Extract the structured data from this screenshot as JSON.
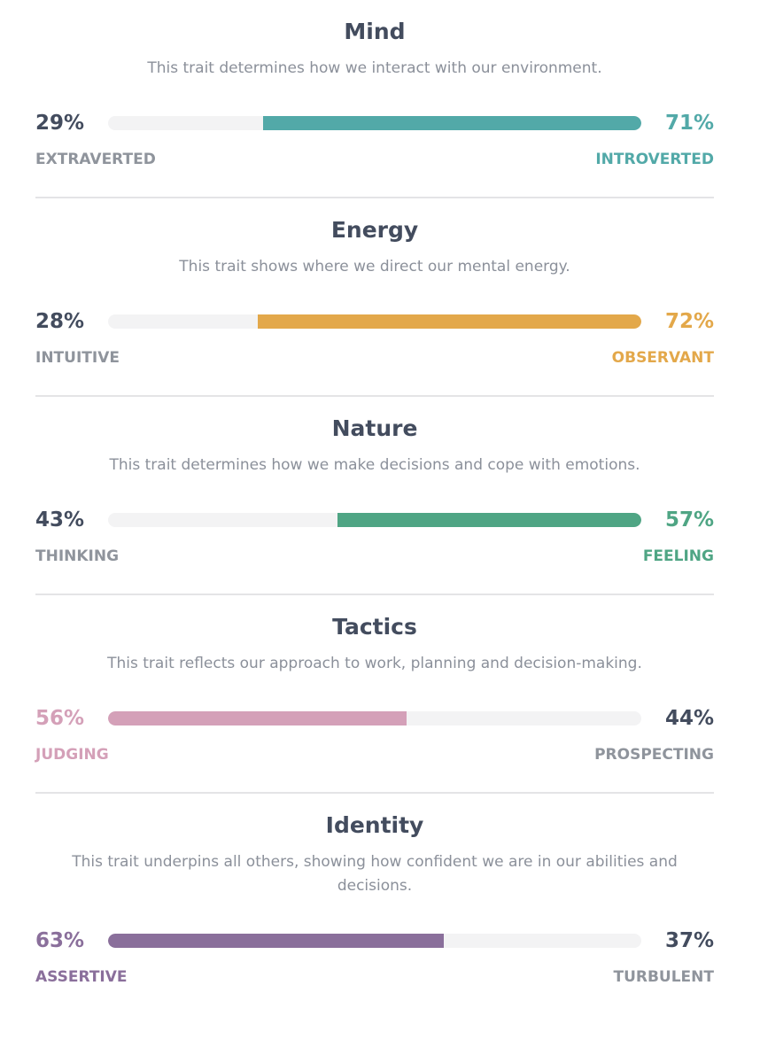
{
  "traits": [
    {
      "title": "Mind",
      "description": "This trait determines how we interact with our environment.",
      "color": "#52a9a8",
      "highlight": "right",
      "left": {
        "value": 29,
        "value_label": "29%",
        "name": "EXTRAVERTED"
      },
      "right": {
        "value": 71,
        "value_label": "71%",
        "name": "INTROVERTED"
      }
    },
    {
      "title": "Energy",
      "description": "This trait shows where we direct our mental energy.",
      "color": "#e3a84a",
      "highlight": "right",
      "left": {
        "value": 28,
        "value_label": "28%",
        "name": "INTUITIVE"
      },
      "right": {
        "value": 72,
        "value_label": "72%",
        "name": "OBSERVANT"
      }
    },
    {
      "title": "Nature",
      "description": "This trait determines how we make decisions and cope with emotions.",
      "color": "#4fa584",
      "highlight": "right",
      "left": {
        "value": 43,
        "value_label": "43%",
        "name": "THINKING"
      },
      "right": {
        "value": 57,
        "value_label": "57%",
        "name": "FEELING"
      }
    },
    {
      "title": "Tactics",
      "description": "This trait reflects our approach to work, planning and decision-making.",
      "color": "#d4a0b8",
      "highlight": "left",
      "left": {
        "value": 56,
        "value_label": "56%",
        "name": "JUDGING"
      },
      "right": {
        "value": 44,
        "value_label": "44%",
        "name": "PROSPECTING"
      }
    },
    {
      "title": "Identity",
      "description": "This trait underpins all others, showing how confident we are in our abilities and decisions.",
      "color": "#8a6f9b",
      "highlight": "left",
      "left": {
        "value": 63,
        "value_label": "63%",
        "name": "ASSERTIVE"
      },
      "right": {
        "value": 37,
        "value_label": "37%",
        "name": "TURBULENT"
      }
    }
  ]
}
